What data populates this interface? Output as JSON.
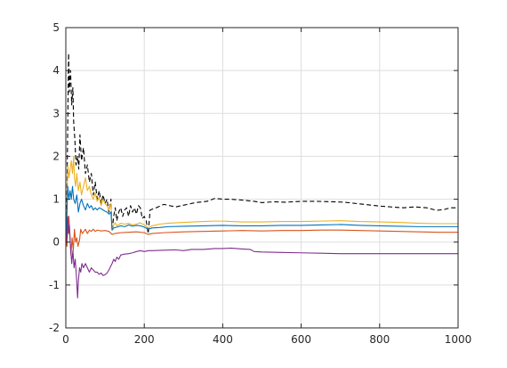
{
  "chart_data": {
    "type": "line",
    "title": "",
    "xlabel": "",
    "ylabel": "",
    "xlim": [
      0,
      1000
    ],
    "ylim": [
      -2,
      5
    ],
    "xticks": [
      0,
      200,
      400,
      600,
      800,
      1000
    ],
    "yticks": [
      -2,
      -1,
      0,
      1,
      2,
      3,
      4,
      5
    ],
    "xtick_labels": [
      "0",
      "200",
      "400",
      "600",
      "800",
      "1000"
    ],
    "ytick_labels": [
      "-2",
      "-1",
      "0",
      "1",
      "2",
      "3",
      "4",
      "5"
    ],
    "grid": true,
    "series": [
      {
        "color": "#000000",
        "style": "dashed",
        "points": [
          [
            1,
            0.1
          ],
          [
            3,
            1.2
          ],
          [
            5,
            2.8
          ],
          [
            7,
            4.4
          ],
          [
            9,
            3.5
          ],
          [
            12,
            4.0
          ],
          [
            15,
            3.2
          ],
          [
            18,
            3.6
          ],
          [
            20,
            2.8
          ],
          [
            23,
            2.4
          ],
          [
            26,
            1.8
          ],
          [
            30,
            2.0
          ],
          [
            33,
            1.7
          ],
          [
            36,
            2.5
          ],
          [
            40,
            1.9
          ],
          [
            45,
            2.2
          ],
          [
            50,
            1.6
          ],
          [
            55,
            1.8
          ],
          [
            60,
            1.4
          ],
          [
            65,
            1.6
          ],
          [
            70,
            1.1
          ],
          [
            75,
            1.4
          ],
          [
            80,
            1.0
          ],
          [
            85,
            1.2
          ],
          [
            90,
            0.9
          ],
          [
            95,
            1.1
          ],
          [
            100,
            0.9
          ],
          [
            105,
            1.0
          ],
          [
            110,
            0.7
          ],
          [
            115,
            1.0
          ],
          [
            118,
            0.25
          ],
          [
            122,
            0.6
          ],
          [
            126,
            0.8
          ],
          [
            130,
            0.5
          ],
          [
            135,
            0.7
          ],
          [
            140,
            0.8
          ],
          [
            145,
            0.6
          ],
          [
            150,
            0.75
          ],
          [
            155,
            0.8
          ],
          [
            160,
            0.6
          ],
          [
            165,
            0.85
          ],
          [
            170,
            0.7
          ],
          [
            175,
            0.8
          ],
          [
            180,
            0.65
          ],
          [
            185,
            0.85
          ],
          [
            190,
            0.8
          ],
          [
            195,
            0.55
          ],
          [
            200,
            0.6
          ],
          [
            205,
            0.5
          ],
          [
            210,
            0.2
          ],
          [
            215,
            0.75
          ],
          [
            230,
            0.8
          ],
          [
            250,
            0.88
          ],
          [
            280,
            0.82
          ],
          [
            300,
            0.86
          ],
          [
            330,
            0.92
          ],
          [
            360,
            0.95
          ],
          [
            380,
            1.02
          ],
          [
            400,
            1.0
          ],
          [
            420,
            1.0
          ],
          [
            450,
            0.98
          ],
          [
            480,
            0.95
          ],
          [
            500,
            0.92
          ],
          [
            530,
            0.94
          ],
          [
            560,
            0.93
          ],
          [
            600,
            0.95
          ],
          [
            640,
            0.95
          ],
          [
            680,
            0.94
          ],
          [
            710,
            0.93
          ],
          [
            740,
            0.9
          ],
          [
            770,
            0.87
          ],
          [
            800,
            0.84
          ],
          [
            830,
            0.82
          ],
          [
            860,
            0.8
          ],
          [
            890,
            0.82
          ],
          [
            920,
            0.8
          ],
          [
            945,
            0.74
          ],
          [
            965,
            0.76
          ],
          [
            980,
            0.8
          ],
          [
            1000,
            0.8
          ]
        ]
      },
      {
        "color": "#EDB120",
        "style": "solid",
        "points": [
          [
            1,
            0.1
          ],
          [
            3,
            0.8
          ],
          [
            5,
            1.8
          ],
          [
            8,
            1.5
          ],
          [
            11,
            1.7
          ],
          [
            14,
            1.9
          ],
          [
            17,
            1.6
          ],
          [
            20,
            2.0
          ],
          [
            22,
            1.5
          ],
          [
            25,
            1.3
          ],
          [
            28,
            1.6
          ],
          [
            32,
            1.2
          ],
          [
            36,
            1.4
          ],
          [
            40,
            1.1
          ],
          [
            45,
            1.3
          ],
          [
            50,
            1.5
          ],
          [
            55,
            1.2
          ],
          [
            60,
            1.3
          ],
          [
            65,
            1.1
          ],
          [
            70,
            1.0
          ],
          [
            75,
            1.15
          ],
          [
            80,
            0.95
          ],
          [
            85,
            1.05
          ],
          [
            90,
            0.85
          ],
          [
            95,
            1.0
          ],
          [
            100,
            0.9
          ],
          [
            105,
            0.85
          ],
          [
            110,
            0.75
          ],
          [
            115,
            0.9
          ],
          [
            118,
            0.28
          ],
          [
            122,
            0.4
          ],
          [
            126,
            0.45
          ],
          [
            130,
            0.38
          ],
          [
            140,
            0.44
          ],
          [
            150,
            0.42
          ],
          [
            160,
            0.44
          ],
          [
            170,
            0.4
          ],
          [
            180,
            0.42
          ],
          [
            190,
            0.45
          ],
          [
            200,
            0.4
          ],
          [
            210,
            0.33
          ],
          [
            220,
            0.38
          ],
          [
            240,
            0.42
          ],
          [
            260,
            0.44
          ],
          [
            280,
            0.45
          ],
          [
            300,
            0.46
          ],
          [
            350,
            0.48
          ],
          [
            380,
            0.49
          ],
          [
            400,
            0.49
          ],
          [
            450,
            0.47
          ],
          [
            500,
            0.47
          ],
          [
            550,
            0.48
          ],
          [
            600,
            0.48
          ],
          [
            650,
            0.49
          ],
          [
            700,
            0.5
          ],
          [
            750,
            0.48
          ],
          [
            800,
            0.47
          ],
          [
            850,
            0.46
          ],
          [
            900,
            0.44
          ],
          [
            950,
            0.43
          ],
          [
            1000,
            0.43
          ]
        ]
      },
      {
        "color": "#0072BD",
        "style": "solid",
        "points": [
          [
            1,
            0.1
          ],
          [
            3,
            0.7
          ],
          [
            5,
            1.3
          ],
          [
            8,
            1.0
          ],
          [
            11,
            1.2
          ],
          [
            14,
            1.0
          ],
          [
            17,
            1.3
          ],
          [
            20,
            1.0
          ],
          [
            24,
            0.9
          ],
          [
            28,
            1.1
          ],
          [
            32,
            0.7
          ],
          [
            36,
            0.9
          ],
          [
            40,
            1.0
          ],
          [
            45,
            0.85
          ],
          [
            50,
            0.75
          ],
          [
            55,
            0.9
          ],
          [
            60,
            0.8
          ],
          [
            65,
            0.85
          ],
          [
            70,
            0.75
          ],
          [
            75,
            0.8
          ],
          [
            80,
            0.75
          ],
          [
            85,
            0.8
          ],
          [
            90,
            0.78
          ],
          [
            95,
            0.75
          ],
          [
            100,
            0.72
          ],
          [
            105,
            0.7
          ],
          [
            110,
            0.65
          ],
          [
            115,
            0.7
          ],
          [
            118,
            0.28
          ],
          [
            122,
            0.33
          ],
          [
            130,
            0.35
          ],
          [
            140,
            0.38
          ],
          [
            150,
            0.36
          ],
          [
            160,
            0.4
          ],
          [
            170,
            0.37
          ],
          [
            180,
            0.39
          ],
          [
            190,
            0.38
          ],
          [
            200,
            0.35
          ],
          [
            210,
            0.3
          ],
          [
            220,
            0.33
          ],
          [
            240,
            0.34
          ],
          [
            260,
            0.36
          ],
          [
            300,
            0.37
          ],
          [
            350,
            0.38
          ],
          [
            400,
            0.39
          ],
          [
            450,
            0.38
          ],
          [
            500,
            0.38
          ],
          [
            550,
            0.39
          ],
          [
            600,
            0.39
          ],
          [
            650,
            0.4
          ],
          [
            700,
            0.41
          ],
          [
            750,
            0.39
          ],
          [
            800,
            0.38
          ],
          [
            850,
            0.37
          ],
          [
            900,
            0.36
          ],
          [
            950,
            0.36
          ],
          [
            1000,
            0.36
          ]
        ]
      },
      {
        "color": "#D95319",
        "style": "solid",
        "points": [
          [
            1,
            0.0
          ],
          [
            3,
            -0.1
          ],
          [
            5,
            0.3
          ],
          [
            8,
            0.6
          ],
          [
            10,
            0.2
          ],
          [
            13,
            -0.3
          ],
          [
            16,
            0.1
          ],
          [
            19,
            -0.2
          ],
          [
            22,
            0.3
          ],
          [
            25,
            0.0
          ],
          [
            28,
            0.1
          ],
          [
            31,
            -0.1
          ],
          [
            35,
            0.05
          ],
          [
            38,
            0.3
          ],
          [
            42,
            0.2
          ],
          [
            46,
            0.25
          ],
          [
            50,
            0.3
          ],
          [
            55,
            0.2
          ],
          [
            60,
            0.28
          ],
          [
            65,
            0.25
          ],
          [
            70,
            0.3
          ],
          [
            75,
            0.25
          ],
          [
            80,
            0.28
          ],
          [
            90,
            0.26
          ],
          [
            100,
            0.27
          ],
          [
            110,
            0.25
          ],
          [
            118,
            0.18
          ],
          [
            125,
            0.2
          ],
          [
            140,
            0.22
          ],
          [
            160,
            0.23
          ],
          [
            180,
            0.24
          ],
          [
            200,
            0.22
          ],
          [
            210,
            0.18
          ],
          [
            220,
            0.2
          ],
          [
            250,
            0.22
          ],
          [
            300,
            0.24
          ],
          [
            350,
            0.25
          ],
          [
            400,
            0.26
          ],
          [
            450,
            0.27
          ],
          [
            500,
            0.26
          ],
          [
            550,
            0.27
          ],
          [
            600,
            0.27
          ],
          [
            650,
            0.28
          ],
          [
            700,
            0.28
          ],
          [
            750,
            0.27
          ],
          [
            800,
            0.26
          ],
          [
            850,
            0.25
          ],
          [
            900,
            0.24
          ],
          [
            950,
            0.23
          ],
          [
            1000,
            0.23
          ]
        ]
      },
      {
        "color": "#7E2F8E",
        "style": "solid",
        "points": [
          [
            1,
            0.0
          ],
          [
            3,
            0.2
          ],
          [
            5,
            0.6
          ],
          [
            7,
            0.2
          ],
          [
            9,
            0.4
          ],
          [
            12,
            -0.1
          ],
          [
            15,
            -0.5
          ],
          [
            18,
            -0.2
          ],
          [
            21,
            -0.6
          ],
          [
            24,
            -0.4
          ],
          [
            27,
            -0.8
          ],
          [
            30,
            -1.3
          ],
          [
            32,
            -0.9
          ],
          [
            35,
            -0.6
          ],
          [
            38,
            -0.7
          ],
          [
            41,
            -0.5
          ],
          [
            45,
            -0.6
          ],
          [
            50,
            -0.5
          ],
          [
            55,
            -0.6
          ],
          [
            60,
            -0.7
          ],
          [
            65,
            -0.6
          ],
          [
            70,
            -0.65
          ],
          [
            75,
            -0.7
          ],
          [
            80,
            -0.7
          ],
          [
            85,
            -0.75
          ],
          [
            90,
            -0.72
          ],
          [
            95,
            -0.78
          ],
          [
            100,
            -0.76
          ],
          [
            105,
            -0.72
          ],
          [
            110,
            -0.65
          ],
          [
            115,
            -0.55
          ],
          [
            118,
            -0.5
          ],
          [
            122,
            -0.4
          ],
          [
            126,
            -0.45
          ],
          [
            130,
            -0.35
          ],
          [
            135,
            -0.4
          ],
          [
            140,
            -0.3
          ],
          [
            150,
            -0.28
          ],
          [
            160,
            -0.27
          ],
          [
            170,
            -0.25
          ],
          [
            180,
            -0.22
          ],
          [
            190,
            -0.2
          ],
          [
            200,
            -0.22
          ],
          [
            210,
            -0.2
          ],
          [
            220,
            -0.2
          ],
          [
            250,
            -0.19
          ],
          [
            280,
            -0.18
          ],
          [
            300,
            -0.2
          ],
          [
            320,
            -0.17
          ],
          [
            350,
            -0.17
          ],
          [
            380,
            -0.15
          ],
          [
            400,
            -0.15
          ],
          [
            420,
            -0.14
          ],
          [
            450,
            -0.16
          ],
          [
            470,
            -0.17
          ],
          [
            480,
            -0.22
          ],
          [
            500,
            -0.23
          ],
          [
            550,
            -0.24
          ],
          [
            600,
            -0.25
          ],
          [
            650,
            -0.26
          ],
          [
            700,
            -0.27
          ],
          [
            750,
            -0.27
          ],
          [
            800,
            -0.27
          ],
          [
            850,
            -0.27
          ],
          [
            900,
            -0.27
          ],
          [
            950,
            -0.27
          ],
          [
            1000,
            -0.27
          ]
        ]
      }
    ]
  }
}
